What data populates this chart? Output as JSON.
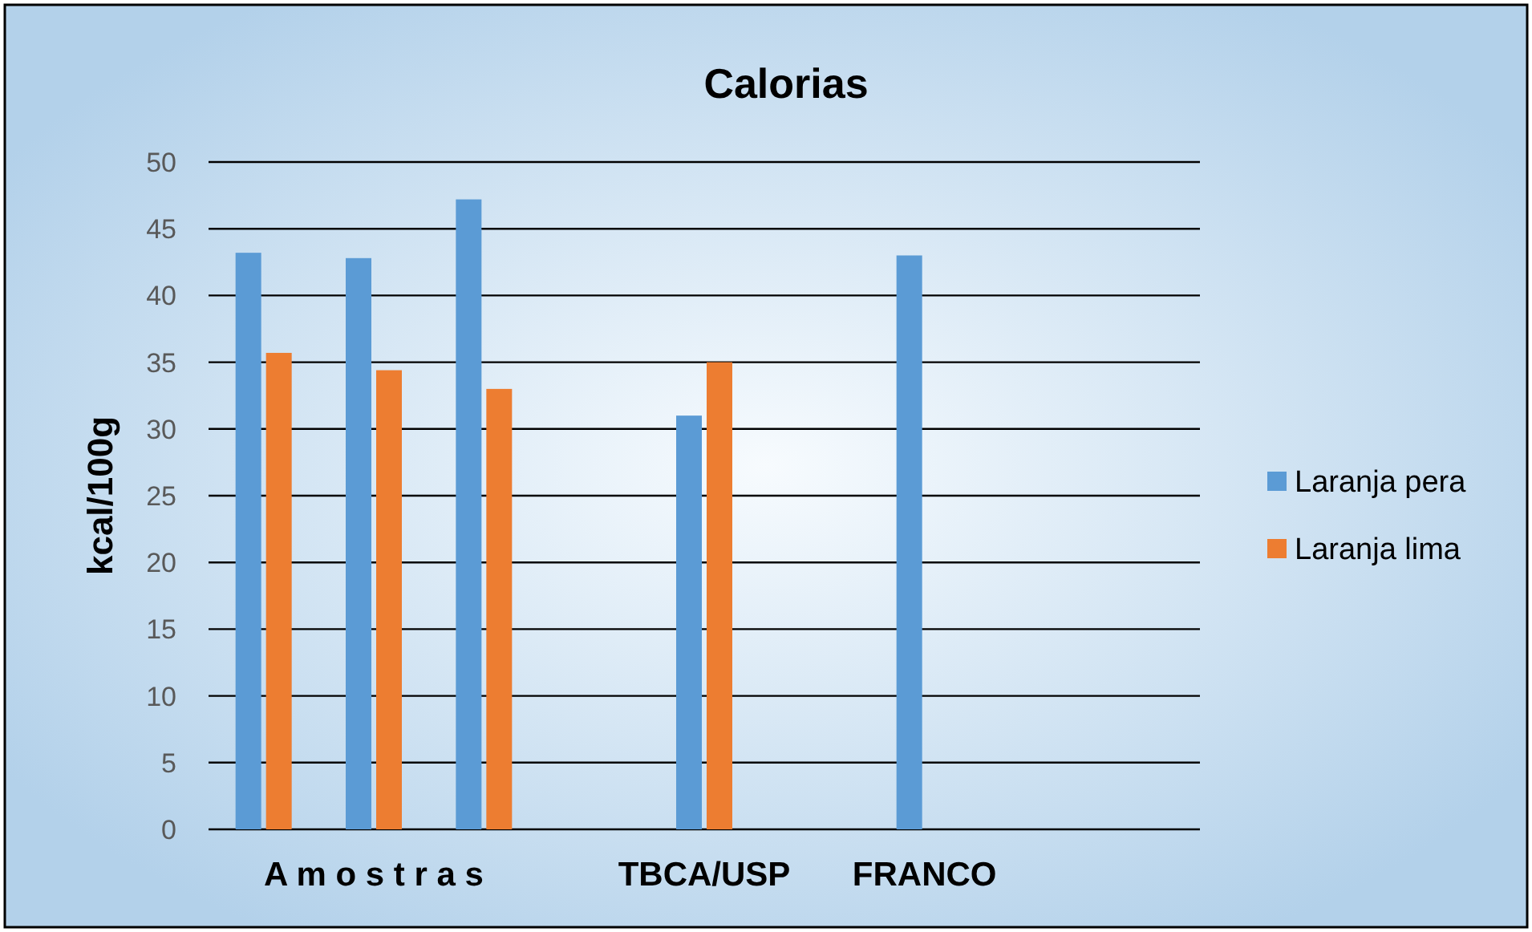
{
  "chart_data": {
    "type": "bar",
    "title": "Calorias",
    "ylabel": "kcal/100g",
    "categories": [
      null,
      "A m o s t r a s",
      null,
      null,
      "TBCA/USP",
      null,
      "FRANCO",
      null,
      null
    ],
    "series": [
      {
        "name": "Laranja pera",
        "color": "#5b9bd5",
        "values": [
          43.2,
          42.8,
          47.2,
          null,
          31,
          null,
          43,
          null,
          null
        ]
      },
      {
        "name": "Laranja lima",
        "color": "#ed7d31",
        "values": [
          35.7,
          34.4,
          33,
          null,
          35,
          null,
          null,
          null,
          null
        ]
      }
    ],
    "ylim": [
      0,
      50
    ],
    "yticks": [
      0,
      5,
      10,
      15,
      20,
      25,
      30,
      35,
      40,
      45,
      50
    ],
    "grid": "y",
    "legend": "right"
  }
}
